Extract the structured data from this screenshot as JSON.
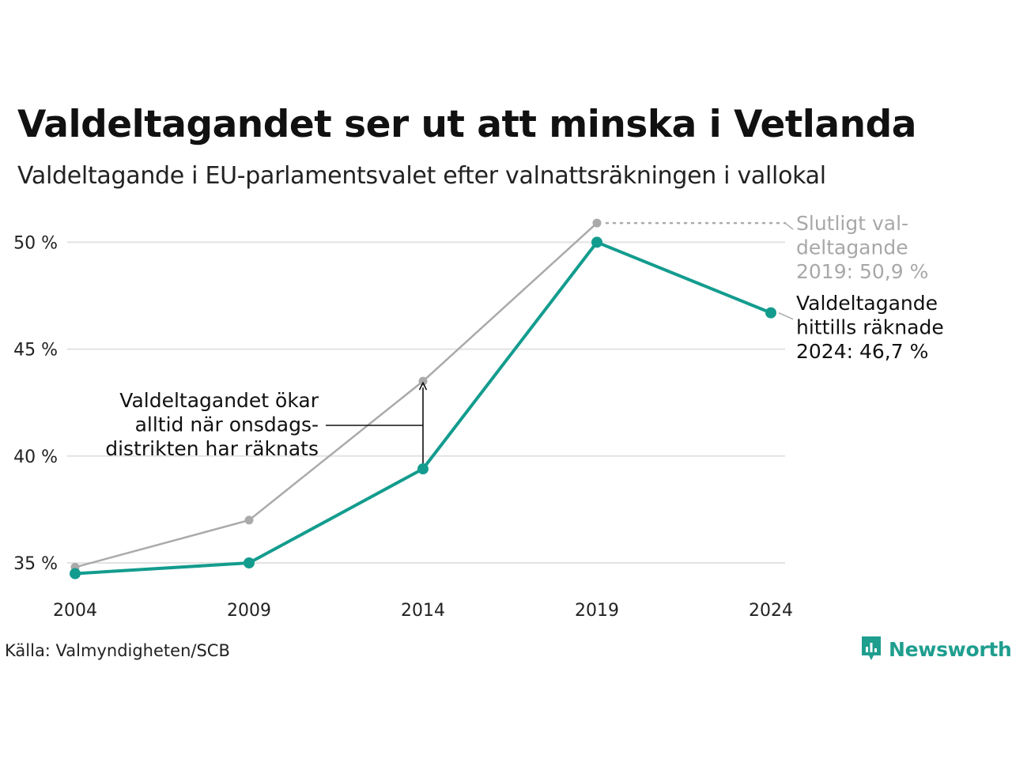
{
  "header": {
    "title": "Valdeltagandet ser ut att minska i Vetlanda",
    "subtitle": "Valdeltagande i EU-parlamentsvalet efter valnattsräkningen i vallokal"
  },
  "chart_data": {
    "type": "line",
    "x": [
      "2004",
      "2009",
      "2014",
      "2019",
      "2024"
    ],
    "y_ticks": [
      "35 %",
      "40 %",
      "45 %",
      "50 %"
    ],
    "y_tick_values": [
      35,
      40,
      45,
      50
    ],
    "ylim": [
      34,
      51
    ],
    "grid": true,
    "series": [
      {
        "key": "final",
        "color": "#aaaaaa",
        "values": [
          34.8,
          37.0,
          43.5,
          50.9,
          null
        ]
      },
      {
        "key": "election_night",
        "color": "#139c8e",
        "values": [
          34.5,
          35.0,
          39.4,
          50.0,
          46.7
        ]
      }
    ],
    "annotations": {
      "final_2019": [
        "Slutligt val-",
        "deltagande",
        "2019: 50,9 %"
      ],
      "counted_2024": [
        "Valdeltagande",
        "hittills räknade",
        "2024: 46,7 %"
      ],
      "increase_note": [
        "Valdeltagandet ökar",
        "alltid när onsdags-",
        "distrikten har räknats"
      ]
    }
  },
  "footer": {
    "source": "Källa: Valmyndigheten/SCB",
    "brand": "Newsworthy",
    "brand_icon": "newsworthy-logo-icon",
    "brand_color": "#1f9e8e"
  }
}
